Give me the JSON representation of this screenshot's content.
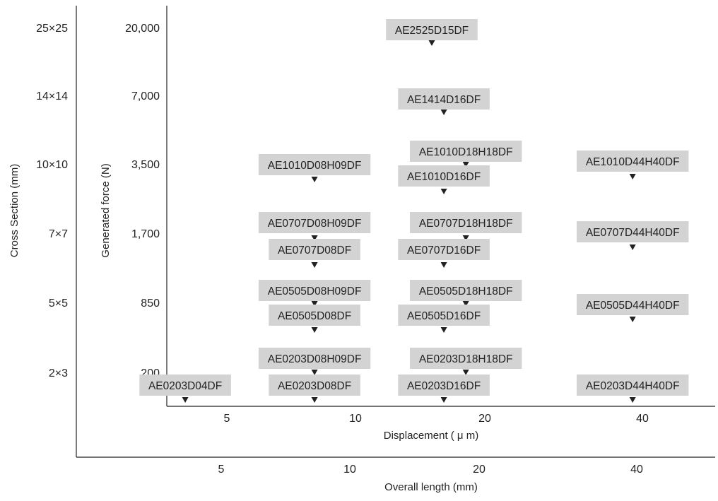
{
  "chart_data": {
    "type": "scatter",
    "title": "",
    "x_axes": [
      {
        "key": "displacement",
        "title": "Displacement ( μ m)",
        "tick_labels": [
          "5",
          "10",
          "20",
          "40"
        ]
      },
      {
        "key": "overall_length",
        "title": "Overall length (mm)",
        "tick_labels": [
          "5",
          "10",
          "20",
          "40"
        ]
      }
    ],
    "y_axes": [
      {
        "key": "cross_section",
        "title": "Cross Section (mm)",
        "tick_labels": [
          "25×25",
          "14×14",
          "10×10",
          "7×7",
          "5×5",
          "2×3"
        ]
      },
      {
        "key": "generated_force",
        "title": "Generated force (N)",
        "tick_labels": [
          "20,000",
          "7,000",
          "3,500",
          "1,700",
          "850",
          "200"
        ]
      }
    ],
    "grid": false,
    "points": [
      {
        "label": "AE2525D15DF",
        "x": 15,
        "y": 20000,
        "cross_section": "25×25"
      },
      {
        "label": "AE1414D16DF",
        "x": 16,
        "y": 7000,
        "cross_section": "14×14"
      },
      {
        "label": "AE1010D08H09DF",
        "x": 8,
        "y": 3500,
        "cross_section": "10×10"
      },
      {
        "label": "AE1010D18H18DF",
        "x": 18,
        "y": 3500,
        "cross_section": "10×10"
      },
      {
        "label": "AE1010D16DF",
        "x": 16,
        "y": 3500,
        "cross_section": "10×10"
      },
      {
        "label": "AE1010D44H40DF",
        "x": 44,
        "y": 3500,
        "cross_section": "10×10"
      },
      {
        "label": "AE0707D08H09DF",
        "x": 8,
        "y": 1700,
        "cross_section": "7×7"
      },
      {
        "label": "AE0707D08DF",
        "x": 8,
        "y": 1700,
        "cross_section": "7×7"
      },
      {
        "label": "AE0707D18H18DF",
        "x": 18,
        "y": 1700,
        "cross_section": "7×7"
      },
      {
        "label": "AE0707D16DF",
        "x": 16,
        "y": 1700,
        "cross_section": "7×7"
      },
      {
        "label": "AE0707D44H40DF",
        "x": 44,
        "y": 1700,
        "cross_section": "7×7"
      },
      {
        "label": "AE0505D08H09DF",
        "x": 8,
        "y": 850,
        "cross_section": "5×5"
      },
      {
        "label": "AE0505D08DF",
        "x": 8,
        "y": 850,
        "cross_section": "5×5"
      },
      {
        "label": "AE0505D18H18DF",
        "x": 18,
        "y": 850,
        "cross_section": "5×5"
      },
      {
        "label": "AE0505D16DF",
        "x": 16,
        "y": 850,
        "cross_section": "5×5"
      },
      {
        "label": "AE0505D44H40DF",
        "x": 44,
        "y": 850,
        "cross_section": "5×5"
      },
      {
        "label": "AE0203D08H09DF",
        "x": 8,
        "y": 200,
        "cross_section": "2×3"
      },
      {
        "label": "AE0203D18H18DF",
        "x": 18,
        "y": 200,
        "cross_section": "2×3"
      },
      {
        "label": "AE0203D04DF",
        "x": 4,
        "y": 200,
        "cross_section": "2×3"
      },
      {
        "label": "AE0203D08DF",
        "x": 8,
        "y": 200,
        "cross_section": "2×3"
      },
      {
        "label": "AE0203D16DF",
        "x": 16,
        "y": 200,
        "cross_section": "2×3"
      },
      {
        "label": "AE0203D44H40DF",
        "x": 44,
        "y": 200,
        "cross_section": "2×3"
      }
    ],
    "colors": {
      "label_fill": "#d3d3d3",
      "marker": "#222222",
      "axis": "#222222"
    }
  }
}
